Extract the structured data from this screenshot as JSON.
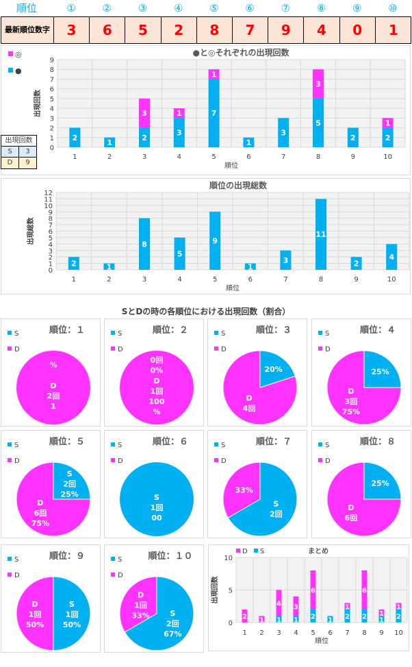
{
  "header": {
    "label_rank": "順位",
    "ranks": [
      "①",
      "②",
      "③",
      "④",
      "⑤",
      "⑥",
      "⑦",
      "⑧",
      "⑨",
      "⑩"
    ],
    "label_latest": "最新順位数字",
    "latest_digits": [
      "3",
      "6",
      "5",
      "2",
      "8",
      "7",
      "9",
      "4",
      "0",
      "1"
    ]
  },
  "chart_data": [
    {
      "type": "bar",
      "title": "●と◎それぞれの出現回数",
      "xlabel": "順位",
      "ylabel": "出現回数",
      "categories": [
        "1",
        "2",
        "3",
        "4",
        "5",
        "6",
        "7",
        "8",
        "9",
        "10"
      ],
      "series": [
        {
          "name": "●",
          "color": "#00b0f0",
          "values": [
            2,
            1,
            2,
            3,
            7,
            1,
            3,
            5,
            2,
            2
          ]
        },
        {
          "name": "◎",
          "color": "#ff33ff",
          "values": [
            0,
            0,
            3,
            1,
            1,
            0,
            0,
            3,
            0,
            1
          ]
        }
      ],
      "ylim": [
        0,
        9
      ],
      "yticks": [
        "0",
        "1",
        "2",
        "3",
        "4",
        "5",
        "6",
        "7",
        "8",
        "9"
      ],
      "stacked": true,
      "legend": "top-left",
      "side_table": {
        "header": "出現回数",
        "rows": [
          [
            "S",
            "3"
          ],
          [
            "D",
            "9"
          ]
        ]
      }
    },
    {
      "type": "bar",
      "title": "順位の出現総数",
      "xlabel": "順位",
      "ylabel": "出現総数",
      "categories": [
        "1",
        "2",
        "3",
        "4",
        "5",
        "6",
        "7",
        "8",
        "9",
        "10"
      ],
      "values": [
        2,
        1,
        8,
        5,
        9,
        1,
        3,
        11,
        2,
        4
      ],
      "color": "#00b0f0",
      "ylim": [
        0,
        12
      ],
      "yticks": [
        "0",
        "1",
        "2",
        "3",
        "4",
        "5",
        "6",
        "7",
        "8",
        "9",
        "10",
        "11",
        "12"
      ]
    },
    {
      "type": "pie",
      "section_title": "SとDの時の各順位における出現回数（割合）",
      "legend": [
        "S",
        "D"
      ],
      "colors": {
        "S": "#00b0f0",
        "D": "#ff33ff"
      },
      "pies": [
        {
          "title": "順位：１",
          "S": 0,
          "D": 2,
          "labels": [
            {
              "k": "D",
              "lines": [
                "D",
                "2回",
                "1"
              ]
            },
            {
              "k": "S",
              "lines": [
                "%"
              ]
            }
          ]
        },
        {
          "title": "順位：２",
          "S": 0,
          "D": 1,
          "labels": [
            {
              "k": "S",
              "lines": [
                "0回",
                "0%"
              ]
            },
            {
              "k": "D",
              "lines": [
                "D",
                "1回",
                "100",
                "%"
              ]
            }
          ]
        },
        {
          "title": "順位：３",
          "S": 1,
          "D": 4,
          "labels": [
            {
              "k": "S",
              "lines": [
                "20%"
              ]
            },
            {
              "k": "D",
              "lines": [
                "D",
                "4回"
              ]
            }
          ]
        },
        {
          "title": "順位：４",
          "S": 1,
          "D": 3,
          "labels": [
            {
              "k": "S",
              "lines": [
                "25%"
              ]
            },
            {
              "k": "D",
              "lines": [
                "D",
                "3回",
                "75%"
              ]
            }
          ]
        },
        {
          "title": "順位：５",
          "S": 2,
          "D": 6,
          "labels": [
            {
              "k": "S",
              "lines": [
                "S",
                "2回",
                "25%"
              ]
            },
            {
              "k": "D",
              "lines": [
                "D",
                "6回",
                "75%"
              ]
            }
          ]
        },
        {
          "title": "順位：６",
          "S": 1,
          "D": 0,
          "labels": [
            {
              "k": "S",
              "lines": [
                "S",
                "1回",
                "00"
              ]
            }
          ]
        },
        {
          "title": "順位：７",
          "S": 2,
          "D": 1,
          "labels": [
            {
              "k": "S",
              "lines": [
                "S",
                "2回"
              ]
            },
            {
              "k": "D",
              "lines": [
                "33%"
              ]
            }
          ]
        },
        {
          "title": "順位：８",
          "S": 2,
          "D": 6,
          "labels": [
            {
              "k": "S",
              "lines": [
                "25%"
              ]
            },
            {
              "k": "D",
              "lines": [
                "D",
                "6回"
              ]
            }
          ]
        },
        {
          "title": "順位：９",
          "S": 1,
          "D": 1,
          "labels": [
            {
              "k": "S",
              "lines": [
                "S",
                "1回",
                "50%"
              ]
            },
            {
              "k": "D",
              "lines": [
                "D",
                "1回",
                "50%"
              ]
            }
          ]
        },
        {
          "title": "順位：１０",
          "S": 2,
          "D": 1,
          "labels": [
            {
              "k": "S",
              "lines": [
                "S",
                "2回",
                "67%"
              ]
            },
            {
              "k": "D",
              "lines": [
                "D",
                "1回",
                "33%"
              ]
            }
          ]
        }
      ]
    },
    {
      "type": "bar",
      "title": "まとめ",
      "xlabel": "順位",
      "ylabel": "出現回数",
      "categories": [
        "1",
        "2",
        "3",
        "4",
        "5",
        "6",
        "7",
        "8",
        "9",
        "10"
      ],
      "stacked": true,
      "series": [
        {
          "name": "S",
          "color": "#00b0f0",
          "values": [
            0,
            0,
            1,
            1,
            2,
            1,
            2,
            2,
            1,
            2
          ]
        },
        {
          "name": "D",
          "color": "#ff33ff",
          "values": [
            2,
            1,
            4,
            3,
            6,
            0,
            1,
            6,
            1,
            1
          ]
        }
      ],
      "ylim": [
        0,
        10
      ],
      "yticks": [
        "0",
        "5",
        "10"
      ],
      "legend": "top-left"
    }
  ]
}
